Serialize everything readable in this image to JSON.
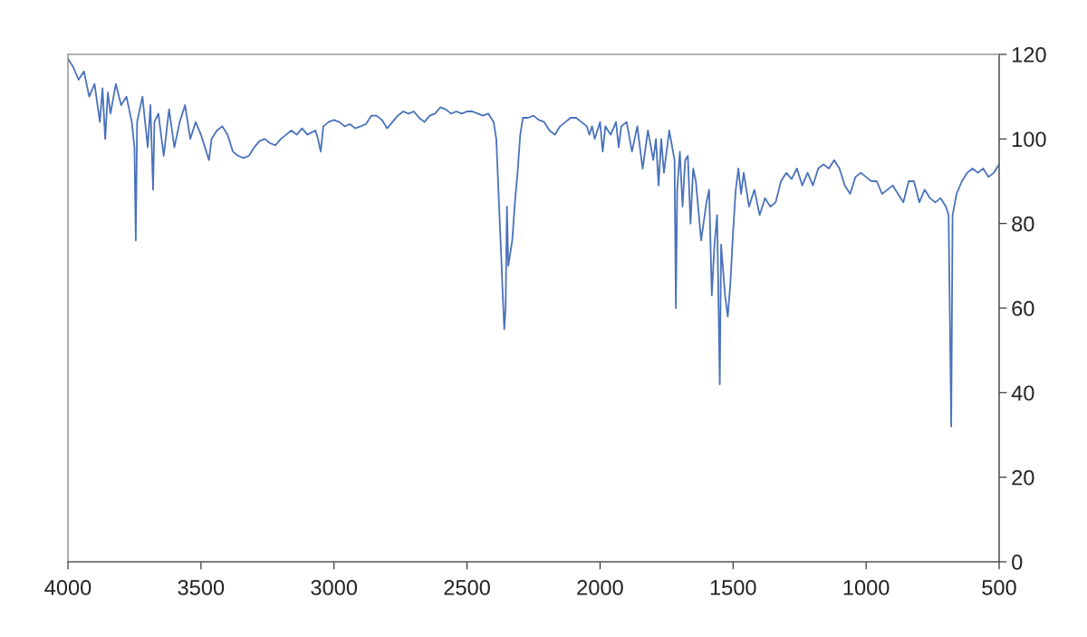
{
  "chart_data": {
    "type": "line",
    "series": [
      {
        "color": "#4a72bb",
        "axis": "y2",
        "x": [
          4000,
          3980,
          3960,
          3940,
          3920,
          3900,
          3880,
          3870,
          3860,
          3850,
          3840,
          3820,
          3800,
          3780,
          3760,
          3750,
          3745,
          3740,
          3720,
          3700,
          3690,
          3680,
          3675,
          3660,
          3640,
          3620,
          3600,
          3580,
          3560,
          3540,
          3520,
          3500,
          3480,
          3470,
          3460,
          3440,
          3420,
          3400,
          3380,
          3360,
          3340,
          3320,
          3300,
          3280,
          3260,
          3240,
          3220,
          3200,
          3180,
          3160,
          3140,
          3120,
          3100,
          3070,
          3060,
          3050,
          3040,
          3020,
          3000,
          2980,
          2960,
          2940,
          2920,
          2900,
          2880,
          2860,
          2840,
          2820,
          2800,
          2780,
          2760,
          2740,
          2720,
          2700,
          2680,
          2660,
          2640,
          2620,
          2600,
          2580,
          2560,
          2540,
          2520,
          2500,
          2480,
          2460,
          2440,
          2420,
          2400,
          2390,
          2380,
          2370,
          2365,
          2360,
          2355,
          2350,
          2345,
          2340,
          2330,
          2320,
          2310,
          2300,
          2290,
          2270,
          2250,
          2230,
          2210,
          2190,
          2170,
          2150,
          2130,
          2110,
          2090,
          2070,
          2050,
          2040,
          2030,
          2020,
          2010,
          2000,
          1990,
          1980,
          1960,
          1940,
          1930,
          1920,
          1900,
          1880,
          1860,
          1840,
          1820,
          1800,
          1790,
          1780,
          1770,
          1760,
          1740,
          1720,
          1715,
          1710,
          1700,
          1690,
          1680,
          1670,
          1660,
          1650,
          1640,
          1620,
          1600,
          1590,
          1580,
          1570,
          1560,
          1550,
          1545,
          1530,
          1520,
          1510,
          1500,
          1490,
          1480,
          1470,
          1460,
          1440,
          1420,
          1400,
          1380,
          1360,
          1340,
          1320,
          1300,
          1280,
          1260,
          1240,
          1220,
          1200,
          1180,
          1160,
          1140,
          1120,
          1100,
          1080,
          1060,
          1040,
          1020,
          1000,
          980,
          960,
          940,
          920,
          900,
          880,
          860,
          840,
          820,
          800,
          780,
          760,
          740,
          720,
          700,
          690,
          680,
          675,
          660,
          640,
          620,
          600,
          580,
          560,
          540,
          520,
          500
        ],
        "values": [
          119,
          117,
          114,
          116,
          110,
          113,
          104,
          112,
          100,
          111,
          106,
          113,
          108,
          110,
          104,
          98,
          76,
          104,
          110,
          98,
          108,
          88,
          104,
          106,
          96,
          107,
          98,
          104,
          108,
          100,
          104,
          101,
          97,
          95,
          100,
          102,
          103,
          101,
          97,
          96,
          95.5,
          96,
          98,
          99.5,
          100,
          99,
          98.5,
          100,
          101,
          102,
          101,
          102.5,
          101,
          102,
          100,
          97,
          103,
          104,
          104.5,
          104,
          103,
          103.5,
          102.5,
          103,
          103.5,
          105.5,
          105.5,
          104.5,
          102.5,
          104,
          105.5,
          106.5,
          106,
          106.5,
          105,
          104,
          105.5,
          106,
          107.5,
          107,
          106,
          106.5,
          106,
          106.5,
          106.5,
          106,
          105.5,
          106,
          104,
          100,
          85,
          70,
          62,
          55,
          60,
          84,
          70,
          72,
          76,
          85,
          92,
          101,
          105,
          105,
          105.5,
          104.5,
          104,
          102,
          101,
          103,
          104,
          105,
          105,
          104,
          103,
          101,
          103,
          100,
          102,
          104,
          97,
          103,
          101,
          104,
          98,
          103,
          104,
          97,
          103,
          93,
          102,
          95,
          100,
          89,
          100,
          92,
          102,
          95,
          60,
          88,
          97,
          84,
          95,
          96,
          80,
          93,
          90,
          76,
          85,
          88,
          63,
          75,
          82,
          42,
          75,
          63,
          58,
          66,
          78,
          88,
          93,
          87,
          92,
          84,
          88,
          82,
          86,
          84,
          85,
          90,
          92,
          90.5,
          93,
          89,
          92,
          89,
          93,
          94,
          93,
          95,
          93,
          89,
          87,
          91,
          92,
          91,
          90,
          90,
          87,
          88,
          89,
          87,
          85,
          90,
          90,
          85,
          88,
          86,
          85,
          86,
          84,
          82,
          32,
          82,
          87,
          90,
          92,
          93,
          92,
          93,
          91,
          92,
          94
        ]
      }
    ],
    "xlim": [
      4000,
      500
    ],
    "xticks": [
      4000,
      3500,
      3000,
      2500,
      2000,
      1500,
      1000,
      500
    ],
    "y2lim": [
      0,
      120
    ],
    "y2ticks": [
      0,
      20,
      40,
      60,
      80,
      100,
      120
    ],
    "grid": false,
    "legend": false,
    "marker": "none",
    "line_style": "solid"
  }
}
